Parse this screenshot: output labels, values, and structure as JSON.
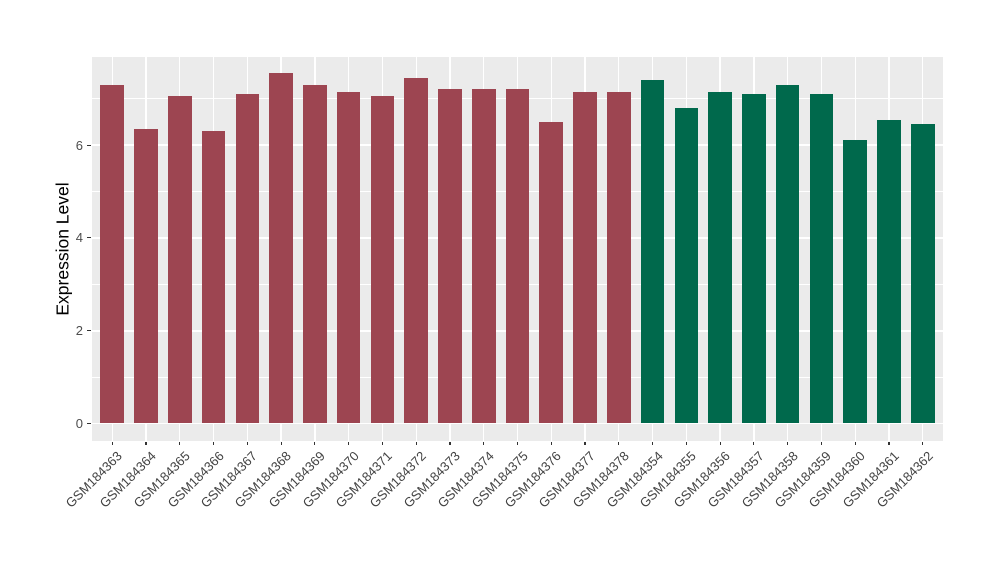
{
  "chart_data": {
    "type": "bar",
    "title": "",
    "xlabel": "",
    "ylabel": "Expression Level",
    "ylim": [
      0,
      7.9
    ],
    "yticks": [
      0,
      2,
      4,
      6
    ],
    "yticks_minor": [
      1,
      3,
      5,
      7
    ],
    "grid": true,
    "legend": false,
    "panel_background": "#EBEBEB",
    "gridline_color": "#FFFFFF",
    "axis_text_color": "#4D4D4D",
    "group_colors": [
      "#9D4551",
      "#00694C"
    ],
    "bars": [
      {
        "label": "GSM184363",
        "value": 7.3,
        "group": 0
      },
      {
        "label": "GSM184364",
        "value": 6.35,
        "group": 0
      },
      {
        "label": "GSM184365",
        "value": 7.05,
        "group": 0
      },
      {
        "label": "GSM184366",
        "value": 6.3,
        "group": 0
      },
      {
        "label": "GSM184367",
        "value": 7.1,
        "group": 0
      },
      {
        "label": "GSM184368",
        "value": 7.55,
        "group": 0
      },
      {
        "label": "GSM184369",
        "value": 7.3,
        "group": 0
      },
      {
        "label": "GSM184370",
        "value": 7.15,
        "group": 0
      },
      {
        "label": "GSM184371",
        "value": 7.05,
        "group": 0
      },
      {
        "label": "GSM184372",
        "value": 7.45,
        "group": 0
      },
      {
        "label": "GSM184373",
        "value": 7.2,
        "group": 0
      },
      {
        "label": "GSM184374",
        "value": 7.2,
        "group": 0
      },
      {
        "label": "GSM184375",
        "value": 7.2,
        "group": 0
      },
      {
        "label": "GSM184376",
        "value": 6.5,
        "group": 0
      },
      {
        "label": "GSM184377",
        "value": 7.15,
        "group": 0
      },
      {
        "label": "GSM184378",
        "value": 7.15,
        "group": 0
      },
      {
        "label": "GSM184354",
        "value": 7.4,
        "group": 1
      },
      {
        "label": "GSM184355",
        "value": 6.8,
        "group": 1
      },
      {
        "label": "GSM184356",
        "value": 7.15,
        "group": 1
      },
      {
        "label": "GSM184357",
        "value": 7.1,
        "group": 1
      },
      {
        "label": "GSM184358",
        "value": 7.3,
        "group": 1
      },
      {
        "label": "GSM184359",
        "value": 7.1,
        "group": 1
      },
      {
        "label": "GSM184360",
        "value": 6.1,
        "group": 1
      },
      {
        "label": "GSM184361",
        "value": 6.55,
        "group": 1
      },
      {
        "label": "GSM184362",
        "value": 6.45,
        "group": 1
      }
    ]
  }
}
